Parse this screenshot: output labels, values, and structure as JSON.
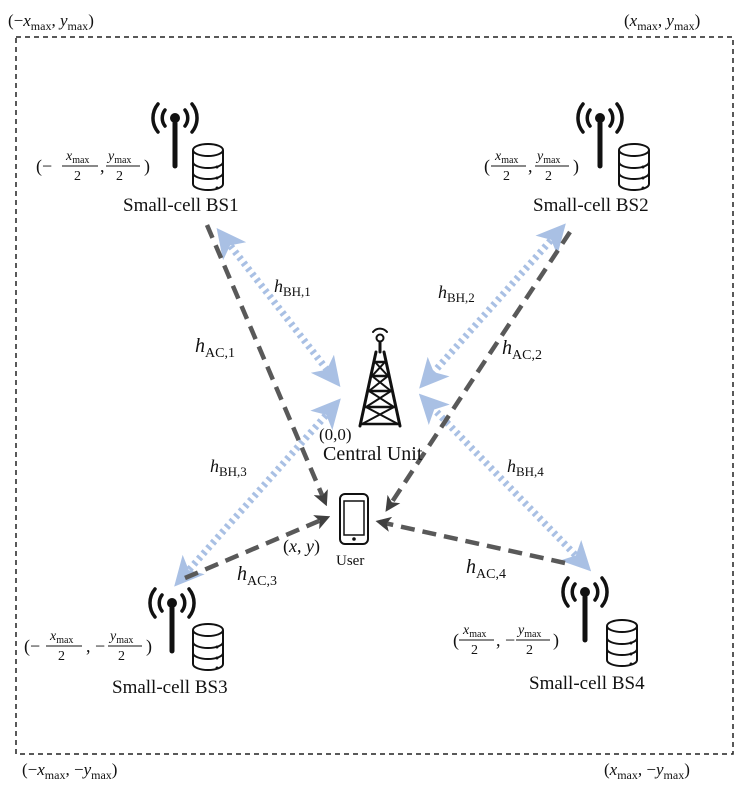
{
  "corners": {
    "top_left": "(−x_max, y_max)",
    "top_right": "(x_max, y_max)",
    "bottom_left": "(−x_max, −y_max)",
    "bottom_right": "(x_max, −y_max)"
  },
  "base_stations": [
    {
      "name": "Small-cell BS1",
      "coord": "(−x_max/2, y_max/2)"
    },
    {
      "name": "Small-cell BS2",
      "coord": "(x_max/2, y_max/2)"
    },
    {
      "name": "Small-cell BS3",
      "coord": "(−x_max/2, −y_max/2)"
    },
    {
      "name": "Small-cell BS4",
      "coord": "(x_max/2, −y_max/2)"
    }
  ],
  "central_unit": {
    "label": "Central Unit",
    "coord": "(0,0)"
  },
  "user": {
    "label": "User",
    "coord": "(x, y)"
  },
  "links": {
    "backhaul": [
      "h_BH,1",
      "h_BH,2",
      "h_BH,3",
      "h_BH,4"
    ],
    "access": [
      "h_AC,1",
      "h_AC,2",
      "h_AC,3",
      "h_AC,4"
    ]
  },
  "colors": {
    "backhaul": "#a9c0e4",
    "access": "#595959",
    "border": "#222222"
  },
  "icons": [
    "antenna-icon",
    "database-icon",
    "tower-icon",
    "phone-icon"
  ]
}
